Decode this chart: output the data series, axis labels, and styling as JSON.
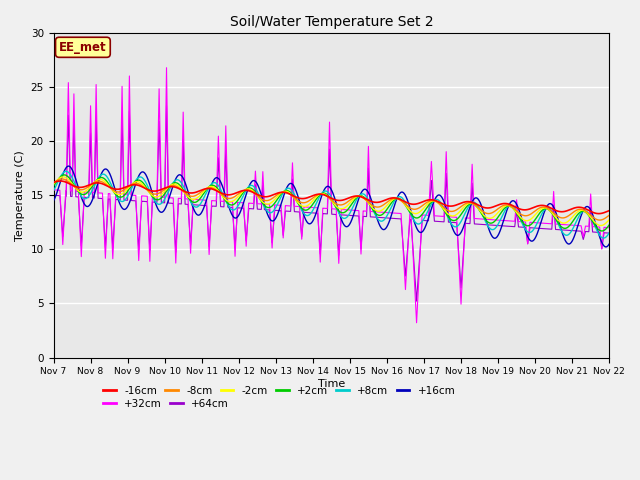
{
  "title": "Soil/Water Temperature Set 2",
  "xlabel": "Time",
  "ylabel": "Temperature (C)",
  "ylim": [
    0,
    30
  ],
  "xlim": [
    0,
    15
  ],
  "bg_color": "#e8e8e8",
  "annotation_text": "EE_met",
  "annotation_bg": "#ffff99",
  "annotation_border": "#8B0000",
  "series_colors": {
    "-16cm": "#ff0000",
    "-8cm": "#ff8800",
    "-2cm": "#ffff00",
    "+2cm": "#00cc00",
    "+8cm": "#00cccc",
    "+16cm": "#0000bb",
    "+32cm": "#ff00ff",
    "+64cm": "#9900cc"
  },
  "x_tick_labels": [
    "Nov 7",
    "Nov 8",
    "Nov 9",
    "Nov 10",
    "Nov 11",
    "Nov 12",
    "Nov 13",
    "Nov 14",
    "Nov 15",
    "Nov 16",
    "Nov 17",
    "Nov 18",
    "Nov 19",
    "Nov 20",
    "Nov 21",
    "Nov 22"
  ],
  "x_tick_positions": [
    0,
    1,
    2,
    3,
    4,
    5,
    6,
    7,
    8,
    9,
    10,
    11,
    12,
    13,
    14,
    15
  ],
  "legend_row1": [
    "-16cm",
    "-8cm",
    "-2cm",
    "+2cm",
    "+8cm",
    "+16cm"
  ],
  "legend_row2": [
    "+32cm",
    "+64cm"
  ]
}
